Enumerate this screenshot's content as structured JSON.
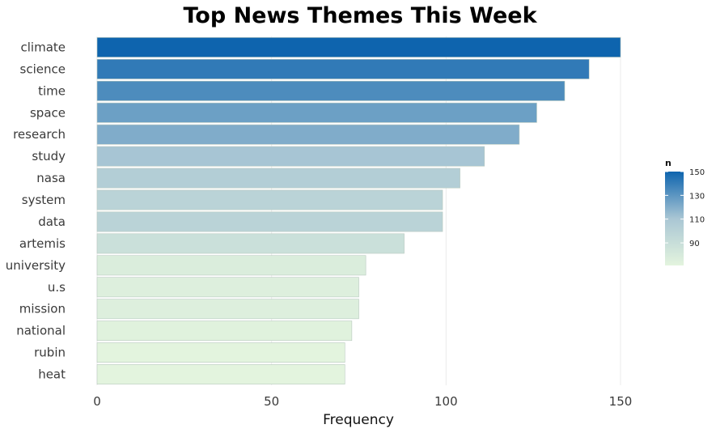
{
  "chart_data": {
    "type": "bar",
    "orientation": "horizontal",
    "title": "Top News Themes This Week",
    "xlabel": "Frequency",
    "ylabel": "",
    "categories": [
      "climate",
      "science",
      "time",
      "space",
      "research",
      "study",
      "nasa",
      "system",
      "data",
      "artemis",
      "university",
      "u.s",
      "mission",
      "national",
      "rubin",
      "heat"
    ],
    "values": [
      150,
      141,
      134,
      126,
      121,
      111,
      104,
      99,
      99,
      88,
      77,
      75,
      75,
      73,
      71,
      71
    ],
    "xlim": [
      0,
      150
    ],
    "xticks": [
      "0",
      "50",
      "100",
      "150"
    ],
    "grid": true,
    "legend": {
      "title": "n",
      "placement": "right",
      "ticks": [
        "150",
        "130",
        "110",
        "90"
      ],
      "range": [
        71,
        150
      ],
      "colors": {
        "low": "#e3f4de",
        "mid": "#a9c6d4",
        "high": "#0e64ae"
      }
    }
  }
}
